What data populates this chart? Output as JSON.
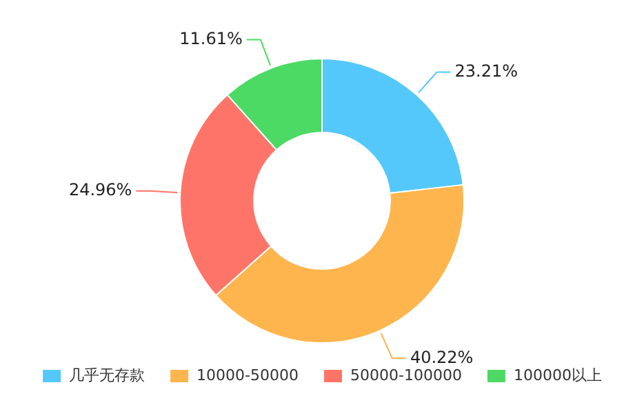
{
  "chart_data": {
    "type": "donut",
    "categories": [
      "几乎无存款",
      "10000-50000",
      "50000-100000",
      "100000以上"
    ],
    "values": [
      23.21,
      40.22,
      24.96,
      11.61
    ],
    "colors": [
      "#55c8fb",
      "#ffb54d",
      "#ff7468",
      "#4cd964"
    ],
    "value_labels": [
      "23.21%",
      "40.22%",
      "24.96%",
      "11.61%"
    ],
    "legend": "bottom"
  }
}
